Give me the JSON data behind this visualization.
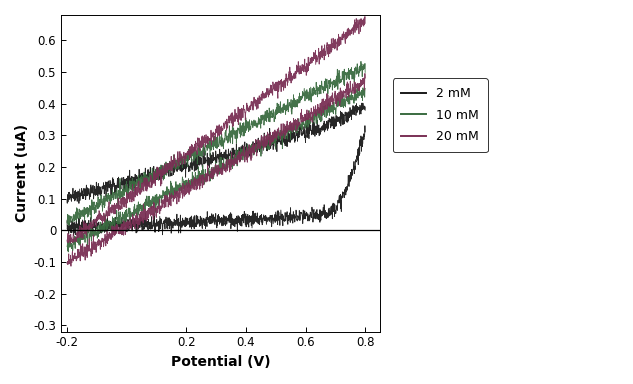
{
  "xlabel": "Potential (V)",
  "ylabel": "Current (uA)",
  "xlim": [
    -0.22,
    0.85
  ],
  "ylim": [
    -0.32,
    0.68
  ],
  "xticks": [
    -0.2,
    0.2,
    0.4,
    0.6,
    0.8
  ],
  "yticks": [
    -0.3,
    -0.2,
    -0.1,
    0.0,
    0.1,
    0.2,
    0.3,
    0.4,
    0.5,
    0.6
  ],
  "legend_labels": [
    "2 mM",
    "10 mM",
    "20 mM"
  ],
  "colors": {
    "2mM": "#1a1a1a",
    "10mM": "#3a6b40",
    "20mM": "#7a3055"
  },
  "noise_level": 0.012,
  "figsize": [
    6.33,
    3.84
  ],
  "dpi": 100
}
